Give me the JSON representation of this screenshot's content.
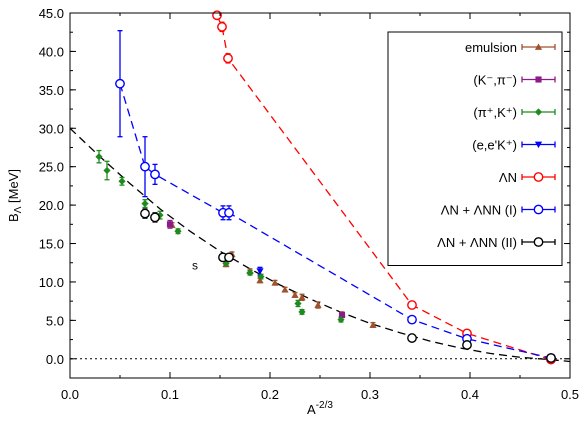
{
  "chart_data": {
    "type": "scatter",
    "title": "",
    "xlabel": "A",
    "xlabel_sup": "-2/3",
    "ylabel": "B",
    "ylabel_sub": "Λ",
    "ylabel_unit": " [MeV]",
    "xlim": [
      0.0,
      0.5
    ],
    "ylim": [
      -2.5,
      45.0
    ],
    "x_ticks": [
      0.0,
      0.1,
      0.2,
      0.3,
      0.4,
      0.5
    ],
    "x_tick_labels": [
      "0.0",
      "0.1",
      "0.2",
      "0.3",
      "0.4",
      "0.5"
    ],
    "y_ticks": [
      0,
      5,
      10,
      15,
      20,
      25,
      30,
      35,
      40,
      45
    ],
    "y_tick_labels": [
      "0.0",
      "5.0",
      "10.0",
      "15.0",
      "20.0",
      "25.0",
      "30.0",
      "35.0",
      "40.0",
      "45.0"
    ],
    "grid": false,
    "legend_position": "top-right",
    "zero_line": true,
    "annotations": [
      {
        "text": "s",
        "x": 0.125,
        "y": 11.6
      }
    ],
    "series": [
      {
        "name": "emulsion",
        "color": "#a0522d",
        "marker": "triangle",
        "points": [
          {
            "x": 0.102,
            "y": 17.4,
            "err": 0.3
          },
          {
            "x": 0.156,
            "y": 12.3,
            "err": 0.3
          },
          {
            "x": 0.162,
            "y": 13.6,
            "err": 0.3
          },
          {
            "x": 0.18,
            "y": 11.4,
            "err": 0.3
          },
          {
            "x": 0.19,
            "y": 10.2,
            "err": 0.3
          },
          {
            "x": 0.205,
            "y": 9.9,
            "err": 0.3
          },
          {
            "x": 0.215,
            "y": 9.0,
            "err": 0.3
          },
          {
            "x": 0.225,
            "y": 8.3,
            "err": 0.3
          },
          {
            "x": 0.232,
            "y": 8.0,
            "err": 0.4
          },
          {
            "x": 0.248,
            "y": 7.0,
            "err": 0.4
          },
          {
            "x": 0.272,
            "y": 5.8,
            "err": 0.3
          },
          {
            "x": 0.303,
            "y": 4.4,
            "err": 0.3
          }
        ]
      },
      {
        "name": "(K⁻,π⁻)",
        "color": "#8b1a8b",
        "marker": "square",
        "points": [
          {
            "x": 0.1,
            "y": 17.5,
            "err": 0.5
          },
          {
            "x": 0.272,
            "y": 5.7,
            "err": 0.3
          }
        ]
      },
      {
        "name": "(π⁺,K⁺)",
        "color": "#1e8b1e",
        "marker": "diamond",
        "points": [
          {
            "x": 0.029,
            "y": 26.3,
            "err": 0.8
          },
          {
            "x": 0.037,
            "y": 24.5,
            "err": 1.2
          },
          {
            "x": 0.052,
            "y": 23.1,
            "err": 0.5
          },
          {
            "x": 0.075,
            "y": 20.2,
            "err": 0.5
          },
          {
            "x": 0.09,
            "y": 18.7,
            "err": 0.5
          },
          {
            "x": 0.108,
            "y": 16.6,
            "err": 0.3
          },
          {
            "x": 0.156,
            "y": 12.4,
            "err": 0.3
          },
          {
            "x": 0.18,
            "y": 11.2,
            "err": 0.3
          },
          {
            "x": 0.191,
            "y": 10.7,
            "err": 0.3
          },
          {
            "x": 0.228,
            "y": 7.2,
            "err": 0.4
          },
          {
            "x": 0.232,
            "y": 6.1,
            "err": 0.3
          },
          {
            "x": 0.271,
            "y": 5.1,
            "err": 0.3
          }
        ]
      },
      {
        "name": "(e,e'K⁺)",
        "color": "#0000ff",
        "marker": "triangle-down",
        "points": [
          {
            "x": 0.19,
            "y": 11.4,
            "err": 0.5
          }
        ]
      },
      {
        "name": "ΛN",
        "color": "#ff0000",
        "marker": "circle-open",
        "line": "dashed",
        "points": [
          {
            "x": 0.147,
            "y": 44.7
          },
          {
            "x": 0.152,
            "y": 43.2,
            "err": 0.6
          },
          {
            "x": 0.158,
            "y": 39.1,
            "err": 0.6
          },
          {
            "x": 0.342,
            "y": 7.0
          },
          {
            "x": 0.397,
            "y": 3.3
          },
          {
            "x": 0.481,
            "y": -0.1
          }
        ]
      },
      {
        "name": "ΛN + ΛNN (I)",
        "color": "#0000ff",
        "marker": "circle-open",
        "line": "dashed",
        "points": [
          {
            "x": 0.05,
            "y": 35.8,
            "err": 6.9
          },
          {
            "x": 0.075,
            "y": 25.0,
            "err": 3.9
          },
          {
            "x": 0.085,
            "y": 24.0,
            "err": 1.3
          },
          {
            "x": 0.153,
            "y": 19.0,
            "err": 0.9
          },
          {
            "x": 0.159,
            "y": 19.0,
            "err": 0.9
          },
          {
            "x": 0.342,
            "y": 5.1
          },
          {
            "x": 0.397,
            "y": 2.6
          },
          {
            "x": 0.481,
            "y": 0.1
          }
        ]
      },
      {
        "name": "ΛN + ΛNN (II)",
        "color": "#000000",
        "marker": "circle-open",
        "line": "none",
        "points": [
          {
            "x": 0.075,
            "y": 18.9,
            "err": 0.6
          },
          {
            "x": 0.085,
            "y": 18.4,
            "err": 0.6
          },
          {
            "x": 0.153,
            "y": 13.2,
            "err": 0.4
          },
          {
            "x": 0.159,
            "y": 13.2,
            "err": 0.4
          },
          {
            "x": 0.342,
            "y": 2.7
          },
          {
            "x": 0.397,
            "y": 1.8
          },
          {
            "x": 0.481,
            "y": 0.1
          }
        ]
      }
    ],
    "curves": [
      {
        "color": "#000000",
        "style": "dashed",
        "points": [
          [
            0.0,
            30.0
          ],
          [
            0.03,
            26.3
          ],
          [
            0.06,
            22.8
          ],
          [
            0.09,
            19.5
          ],
          [
            0.12,
            16.6
          ],
          [
            0.15,
            14.0
          ],
          [
            0.18,
            11.7
          ],
          [
            0.21,
            9.6
          ],
          [
            0.24,
            7.8
          ],
          [
            0.27,
            6.1
          ],
          [
            0.3,
            4.6
          ],
          [
            0.33,
            3.4
          ],
          [
            0.36,
            2.3
          ],
          [
            0.39,
            1.4
          ],
          [
            0.42,
            0.7
          ],
          [
            0.45,
            0.2
          ],
          [
            0.48,
            -0.1
          ],
          [
            0.5,
            -0.35
          ]
        ]
      }
    ]
  }
}
